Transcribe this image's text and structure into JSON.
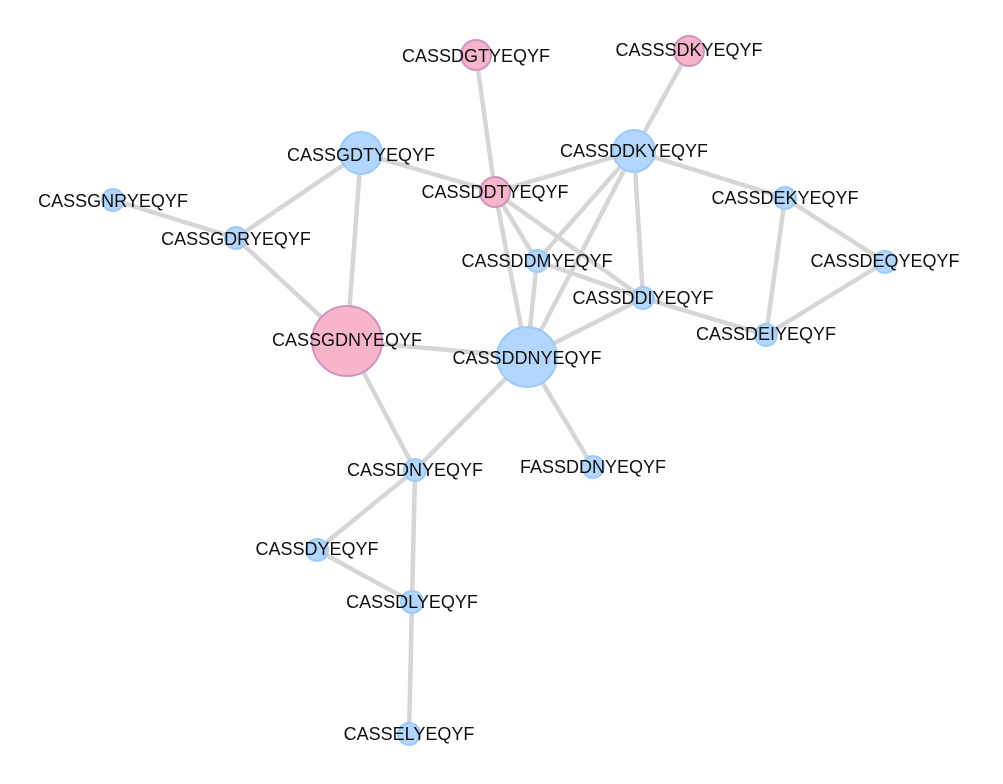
{
  "nodes": [
    {
      "id": "CASSDGTYEQYF",
      "label": "CASSDGTYEQYF",
      "color": "pink"
    },
    {
      "id": "CASSSDKYEQYF",
      "label": "CASSSDKYEQYF",
      "color": "pink"
    },
    {
      "id": "CASSGDTYEQYF",
      "label": "CASSGDTYEQYF",
      "color": "blue"
    },
    {
      "id": "CASSDDKYEQYF",
      "label": "CASSDDKYEQYF",
      "color": "blue"
    },
    {
      "id": "CASSDDTYEQYF",
      "label": "CASSDDTYEQYF",
      "color": "pink"
    },
    {
      "id": "CASSGNRYEQYF",
      "label": "CASSGNRYEQYF",
      "color": "blue"
    },
    {
      "id": "CASSGDRYEQYF",
      "label": "CASSGDRYEQYF",
      "color": "blue"
    },
    {
      "id": "CASSDEKYEQYF",
      "label": "CASSDEKYEQYF",
      "color": "blue"
    },
    {
      "id": "CASSDDMYEQYF",
      "label": "CASSDDMYEQYF",
      "color": "blue"
    },
    {
      "id": "CASSDEQYEQYF",
      "label": "CASSDEQYEQYF",
      "color": "blue"
    },
    {
      "id": "CASSDDIYEQYF",
      "label": "CASSDDIYEQYF",
      "color": "blue"
    },
    {
      "id": "CASSGDNYEQYF",
      "label": "CASSGDNYEQYF",
      "color": "pink"
    },
    {
      "id": "CASSDEIYEQYF",
      "label": "CASSDEIYEQYF",
      "color": "blue"
    },
    {
      "id": "CASSDDNYEQYF",
      "label": "CASSDDNYEQYF",
      "color": "blue"
    },
    {
      "id": "CASSDNYEQYF",
      "label": "CASSDNYEQYF",
      "color": "blue"
    },
    {
      "id": "FASSDDNYEQYF",
      "label": "FASSDDNYEQYF",
      "color": "blue"
    },
    {
      "id": "CASSDYEQYF",
      "label": "CASSDYEQYF",
      "color": "blue"
    },
    {
      "id": "CASSDLYEQYF",
      "label": "CASSDLYEQYF",
      "color": "blue"
    },
    {
      "id": "CASSELYEQYF",
      "label": "CASSELYEQYF",
      "color": "blue"
    }
  ],
  "edges": [
    [
      "CASSDGTYEQYF",
      "CASSDDTYEQYF"
    ],
    [
      "CASSSDKYEQYF",
      "CASSDDKYEQYF"
    ],
    [
      "CASSGDTYEQYF",
      "CASSDDTYEQYF"
    ],
    [
      "CASSGDTYEQYF",
      "CASSGDRYEQYF"
    ],
    [
      "CASSGDTYEQYF",
      "CASSGDNYEQYF"
    ],
    [
      "CASSGNRYEQYF",
      "CASSGDRYEQYF"
    ],
    [
      "CASSGDRYEQYF",
      "CASSGDNYEQYF"
    ],
    [
      "CASSDDTYEQYF",
      "CASSDDKYEQYF"
    ],
    [
      "CASSDDTYEQYF",
      "CASSDDMYEQYF"
    ],
    [
      "CASSDDTYEQYF",
      "CASSDDIYEQYF"
    ],
    [
      "CASSDDTYEQYF",
      "CASSDDNYEQYF"
    ],
    [
      "CASSDDKYEQYF",
      "CASSDEKYEQYF"
    ],
    [
      "CASSDDKYEQYF",
      "CASSDDMYEQYF"
    ],
    [
      "CASSDDKYEQYF",
      "CASSDDIYEQYF"
    ],
    [
      "CASSDDKYEQYF",
      "CASSDDNYEQYF"
    ],
    [
      "CASSDEKYEQYF",
      "CASSDEQYEQYF"
    ],
    [
      "CASSDEKYEQYF",
      "CASSDEIYEQYF"
    ],
    [
      "CASSDEQYEQYF",
      "CASSDEIYEQYF"
    ],
    [
      "CASSDDMYEQYF",
      "CASSDDIYEQYF"
    ],
    [
      "CASSDDMYEQYF",
      "CASSDDNYEQYF"
    ],
    [
      "CASSDDIYEQYF",
      "CASSDEIYEQYF"
    ],
    [
      "CASSDDIYEQYF",
      "CASSDDNYEQYF"
    ],
    [
      "CASSGDNYEQYF",
      "CASSDDNYEQYF"
    ],
    [
      "CASSGDNYEQYF",
      "CASSDNYEQYF"
    ],
    [
      "CASSDDNYEQYF",
      "CASSDNYEQYF"
    ],
    [
      "CASSDDNYEQYF",
      "FASSDDNYEQYF"
    ],
    [
      "CASSDNYEQYF",
      "CASSDYEQYF"
    ],
    [
      "CASSDNYEQYF",
      "CASSDLYEQYF"
    ],
    [
      "CASSDYEQYF",
      "CASSDLYEQYF"
    ],
    [
      "CASSDLYEQYF",
      "CASSELYEQYF"
    ]
  ]
}
